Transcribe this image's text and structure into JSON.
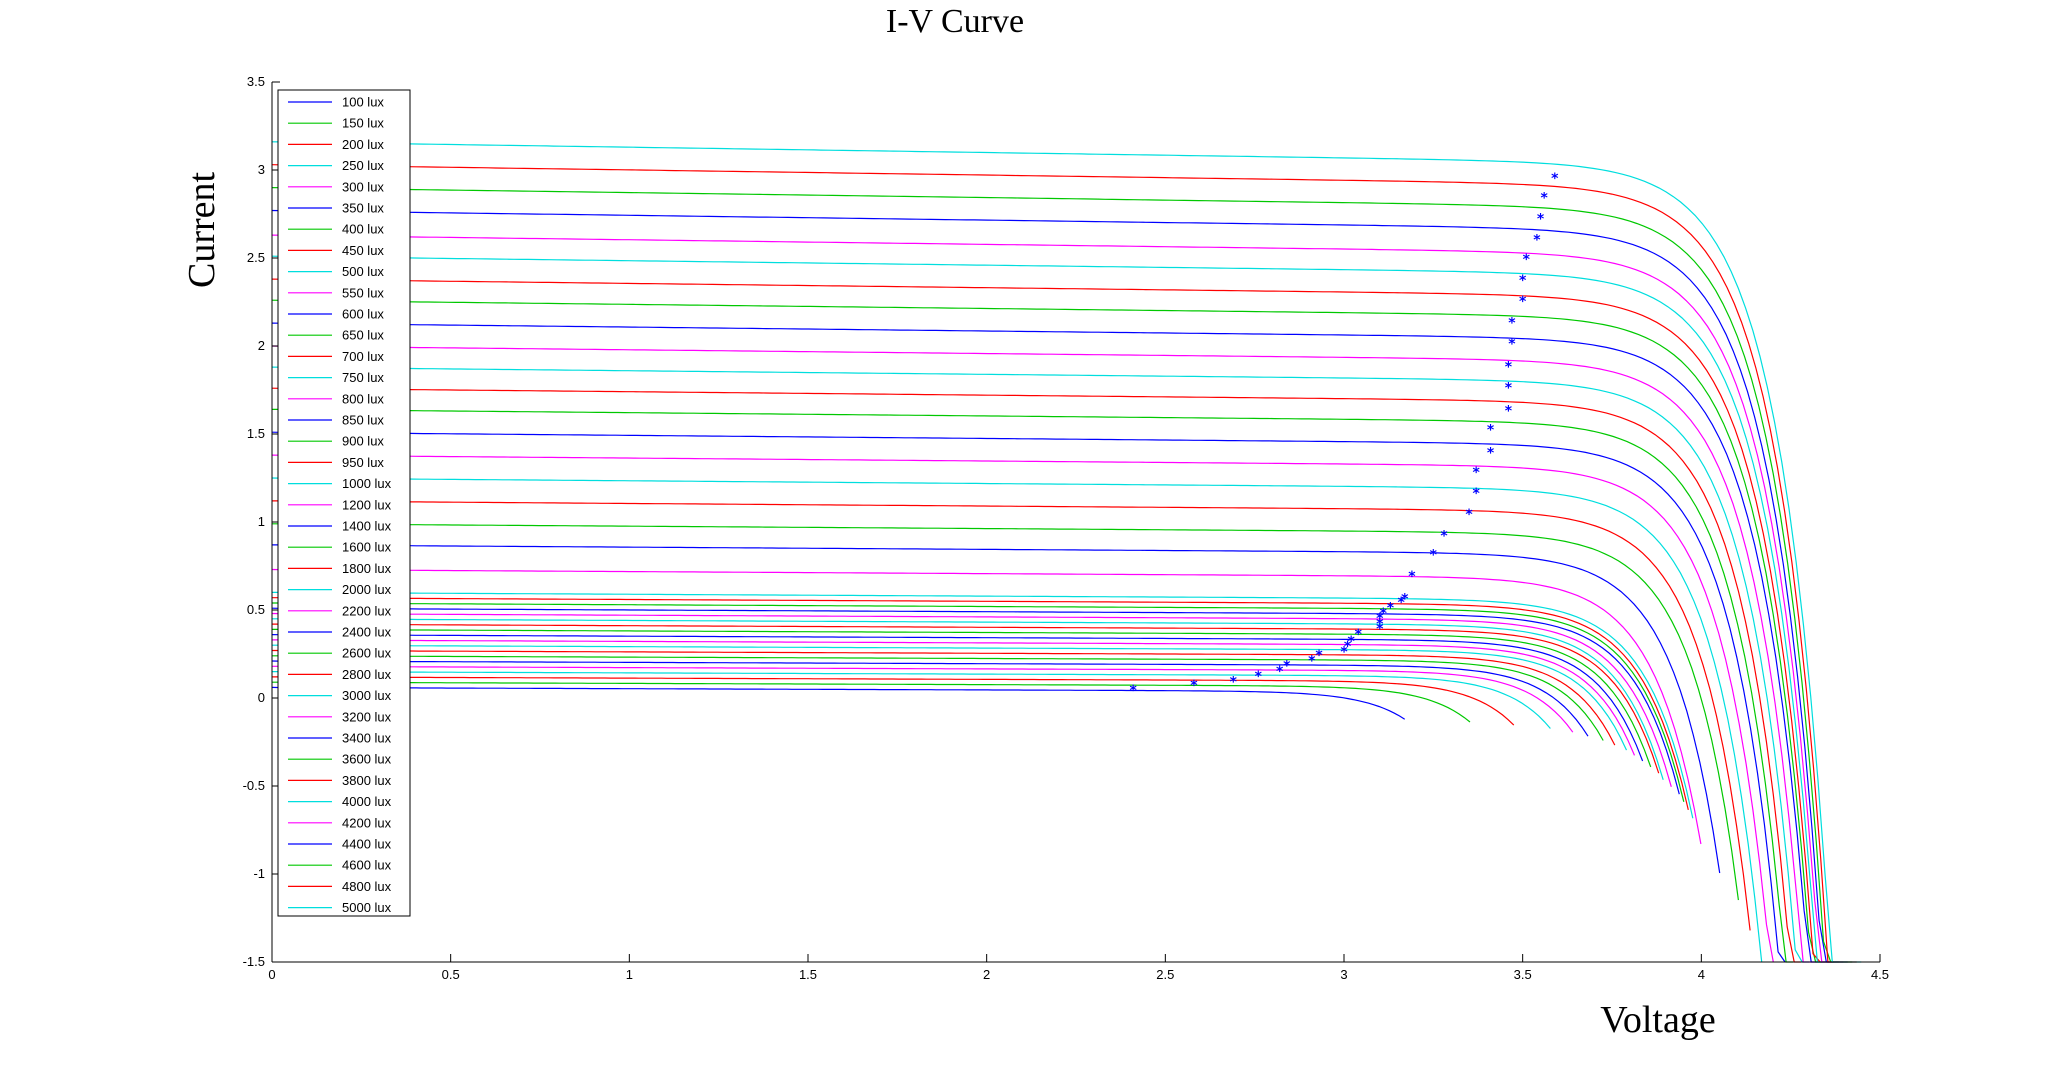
{
  "chart_data": {
    "type": "line",
    "title": "I-V Curve",
    "xlabel": "Voltage",
    "ylabel": "Current",
    "xlim": [
      0,
      4.5
    ],
    "ylim": [
      -1.5,
      3.5
    ],
    "grid": false,
    "legend_position": "top-left",
    "xticks": [
      "0",
      "0.5",
      "1",
      "1.5",
      "2",
      "2.5",
      "3",
      "3.5",
      "4",
      "4.5"
    ],
    "yticks": [
      "-1.5",
      "-1",
      "-0.5",
      "0",
      "0.5",
      "1",
      "1.5",
      "2",
      "2.5",
      "3",
      "3.5"
    ],
    "max_power_marker": "*",
    "max_power_marker_color": "#0000ff",
    "series": [
      {
        "name": "100 lux",
        "color": "#0000ff",
        "isc": 0.06,
        "voc": 3.12,
        "mpp": [
          2.41,
          0.05
        ]
      },
      {
        "name": "150 lux",
        "color": "#00c800",
        "isc": 0.09,
        "voc": 3.3,
        "mpp": [
          2.58,
          0.08
        ]
      },
      {
        "name": "200 lux",
        "color": "#ff0000",
        "isc": 0.12,
        "voc": 3.42,
        "mpp": [
          2.69,
          0.1
        ]
      },
      {
        "name": "250 lux",
        "color": "#00dede",
        "isc": 0.15,
        "voc": 3.52,
        "mpp": [
          2.76,
          0.13
        ]
      },
      {
        "name": "300 lux",
        "color": "#ff00ff",
        "isc": 0.18,
        "voc": 3.58,
        "mpp": [
          2.82,
          0.16
        ]
      },
      {
        "name": "350 lux",
        "color": "#0000ff",
        "isc": 0.21,
        "voc": 3.62,
        "mpp": [
          2.84,
          0.19
        ]
      },
      {
        "name": "400 lux",
        "color": "#00c800",
        "isc": 0.24,
        "voc": 3.66,
        "mpp": [
          2.91,
          0.22
        ]
      },
      {
        "name": "450 lux",
        "color": "#ff0000",
        "isc": 0.27,
        "voc": 3.69,
        "mpp": [
          2.93,
          0.25
        ]
      },
      {
        "name": "500 lux",
        "color": "#00dede",
        "isc": 0.3,
        "voc": 3.72,
        "mpp": [
          3.0,
          0.27
        ]
      },
      {
        "name": "550 lux",
        "color": "#ff00ff",
        "isc": 0.33,
        "voc": 3.74,
        "mpp": [
          3.01,
          0.3
        ]
      },
      {
        "name": "600 lux",
        "color": "#0000ff",
        "isc": 0.36,
        "voc": 3.76,
        "mpp": [
          3.02,
          0.33
        ]
      },
      {
        "name": "650 lux",
        "color": "#00c800",
        "isc": 0.39,
        "voc": 3.78,
        "mpp": [
          3.04,
          0.37
        ]
      },
      {
        "name": "700 lux",
        "color": "#ff0000",
        "isc": 0.42,
        "voc": 3.8,
        "mpp": [
          3.1,
          0.4
        ]
      },
      {
        "name": "750 lux",
        "color": "#00dede",
        "isc": 0.45,
        "voc": 3.81,
        "mpp": [
          3.1,
          0.43
        ]
      },
      {
        "name": "800 lux",
        "color": "#ff00ff",
        "isc": 0.48,
        "voc": 3.83,
        "mpp": [
          3.1,
          0.46
        ]
      },
      {
        "name": "850 lux",
        "color": "#0000ff",
        "isc": 0.51,
        "voc": 3.85,
        "mpp": [
          3.11,
          0.49
        ]
      },
      {
        "name": "900 lux",
        "color": "#00c800",
        "isc": 0.54,
        "voc": 3.86,
        "mpp": [
          3.13,
          0.52
        ]
      },
      {
        "name": "950 lux",
        "color": "#ff0000",
        "isc": 0.57,
        "voc": 3.87,
        "mpp": [
          3.16,
          0.55
        ]
      },
      {
        "name": "1000 lux",
        "color": "#00dede",
        "isc": 0.6,
        "voc": 3.88,
        "mpp": [
          3.17,
          0.57
        ]
      },
      {
        "name": "1200 lux",
        "color": "#ff00ff",
        "isc": 0.73,
        "voc": 3.9,
        "mpp": [
          3.19,
          0.7
        ]
      },
      {
        "name": "1400 lux",
        "color": "#0000ff",
        "isc": 0.87,
        "voc": 3.95,
        "mpp": [
          3.25,
          0.82
        ]
      },
      {
        "name": "1600 lux",
        "color": "#00c800",
        "isc": 0.99,
        "voc": 4.0,
        "mpp": [
          3.28,
          0.93
        ]
      },
      {
        "name": "1800 lux",
        "color": "#ff0000",
        "isc": 1.12,
        "voc": 4.03,
        "mpp": [
          3.35,
          1.05
        ]
      },
      {
        "name": "2000 lux",
        "color": "#00dede",
        "isc": 1.25,
        "voc": 4.06,
        "mpp": [
          3.37,
          1.17
        ]
      },
      {
        "name": "2200 lux",
        "color": "#ff00ff",
        "isc": 1.38,
        "voc": 4.09,
        "mpp": [
          3.37,
          1.29
        ]
      },
      {
        "name": "2400 lux",
        "color": "#0000ff",
        "isc": 1.51,
        "voc": 4.12,
        "mpp": [
          3.41,
          1.4
        ]
      },
      {
        "name": "2600 lux",
        "color": "#00c800",
        "isc": 1.64,
        "voc": 4.14,
        "mpp": [
          3.41,
          1.53
        ]
      },
      {
        "name": "2800 lux",
        "color": "#ff0000",
        "isc": 1.76,
        "voc": 4.16,
        "mpp": [
          3.46,
          1.64
        ]
      },
      {
        "name": "3000 lux",
        "color": "#00dede",
        "isc": 1.88,
        "voc": 4.18,
        "mpp": [
          3.46,
          1.77
        ]
      },
      {
        "name": "3200 lux",
        "color": "#ff00ff",
        "isc": 2.0,
        "voc": 4.2,
        "mpp": [
          3.46,
          1.89
        ]
      },
      {
        "name": "3400 lux",
        "color": "#0000ff",
        "isc": 2.13,
        "voc": 4.22,
        "mpp": [
          3.47,
          2.02
        ]
      },
      {
        "name": "3600 lux",
        "color": "#00c800",
        "isc": 2.26,
        "voc": 4.23,
        "mpp": [
          3.47,
          2.14
        ]
      },
      {
        "name": "3800 lux",
        "color": "#ff0000",
        "isc": 2.38,
        "voc": 4.24,
        "mpp": [
          3.5,
          2.26
        ]
      },
      {
        "name": "4000 lux",
        "color": "#00dede",
        "isc": 2.51,
        "voc": 4.25,
        "mpp": [
          3.5,
          2.38
        ]
      },
      {
        "name": "4200 lux",
        "color": "#ff00ff",
        "isc": 2.63,
        "voc": 4.26,
        "mpp": [
          3.51,
          2.5
        ]
      },
      {
        "name": "4400 lux",
        "color": "#0000ff",
        "isc": 2.77,
        "voc": 4.27,
        "mpp": [
          3.54,
          2.61
        ]
      },
      {
        "name": "4600 lux",
        "color": "#00c800",
        "isc": 2.9,
        "voc": 4.28,
        "mpp": [
          3.55,
          2.73
        ]
      },
      {
        "name": "4800 lux",
        "color": "#ff0000",
        "isc": 3.03,
        "voc": 4.29,
        "mpp": [
          3.56,
          2.85
        ]
      },
      {
        "name": "5000 lux",
        "color": "#00dede",
        "isc": 3.16,
        "voc": 4.3,
        "mpp": [
          3.59,
          2.96
        ]
      }
    ]
  }
}
